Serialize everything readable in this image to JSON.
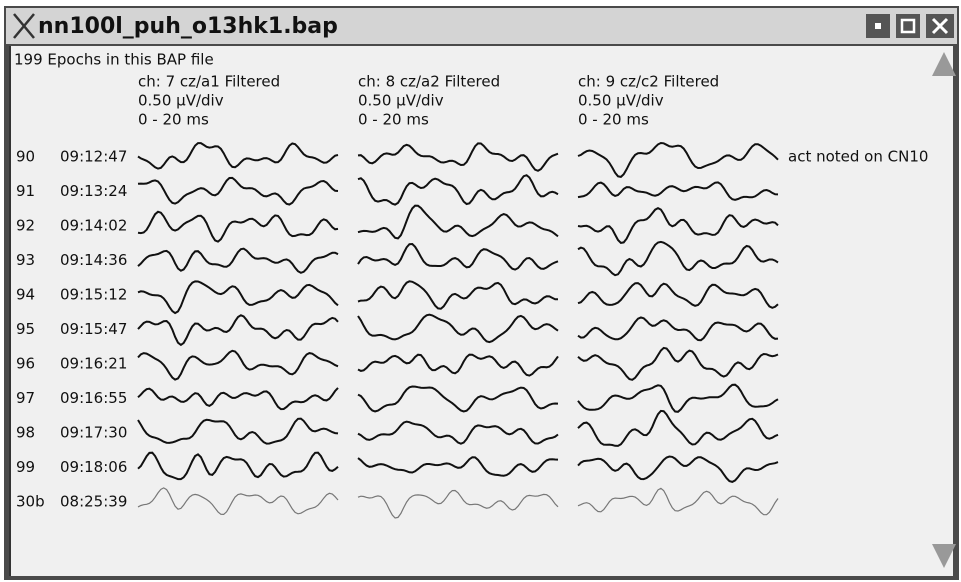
{
  "window": {
    "title": "nn100l_puh_o13hk1.bap"
  },
  "header": "199 Epochs in this BAP file",
  "channels": [
    {
      "name": "ch: 7 cz/a1 Filtered",
      "scale": "0.50 μV/div",
      "range": "0 - 20 ms"
    },
    {
      "name": "ch: 8 cz/a2 Filtered",
      "scale": "0.50 μV/div",
      "range": "0 - 20 ms"
    },
    {
      "name": "ch: 9 cz/c2 Filtered",
      "scale": "0.50 μV/div",
      "range": "0 - 20 ms"
    }
  ],
  "epochs": [
    {
      "number": "90",
      "time": "09:12:47",
      "note": "act noted on CN10"
    },
    {
      "number": "91",
      "time": "09:13:24"
    },
    {
      "number": "92",
      "time": "09:14:02"
    },
    {
      "number": "93",
      "time": "09:14:36"
    },
    {
      "number": "94",
      "time": "09:15:12"
    },
    {
      "number": "95",
      "time": "09:15:47"
    },
    {
      "number": "96",
      "time": "09:16:21"
    },
    {
      "number": "97",
      "time": "09:16:55"
    },
    {
      "number": "98",
      "time": "09:17:30"
    },
    {
      "number": "99",
      "time": "09:18:06"
    },
    {
      "number": "30b",
      "time": "08:25:39"
    }
  ]
}
